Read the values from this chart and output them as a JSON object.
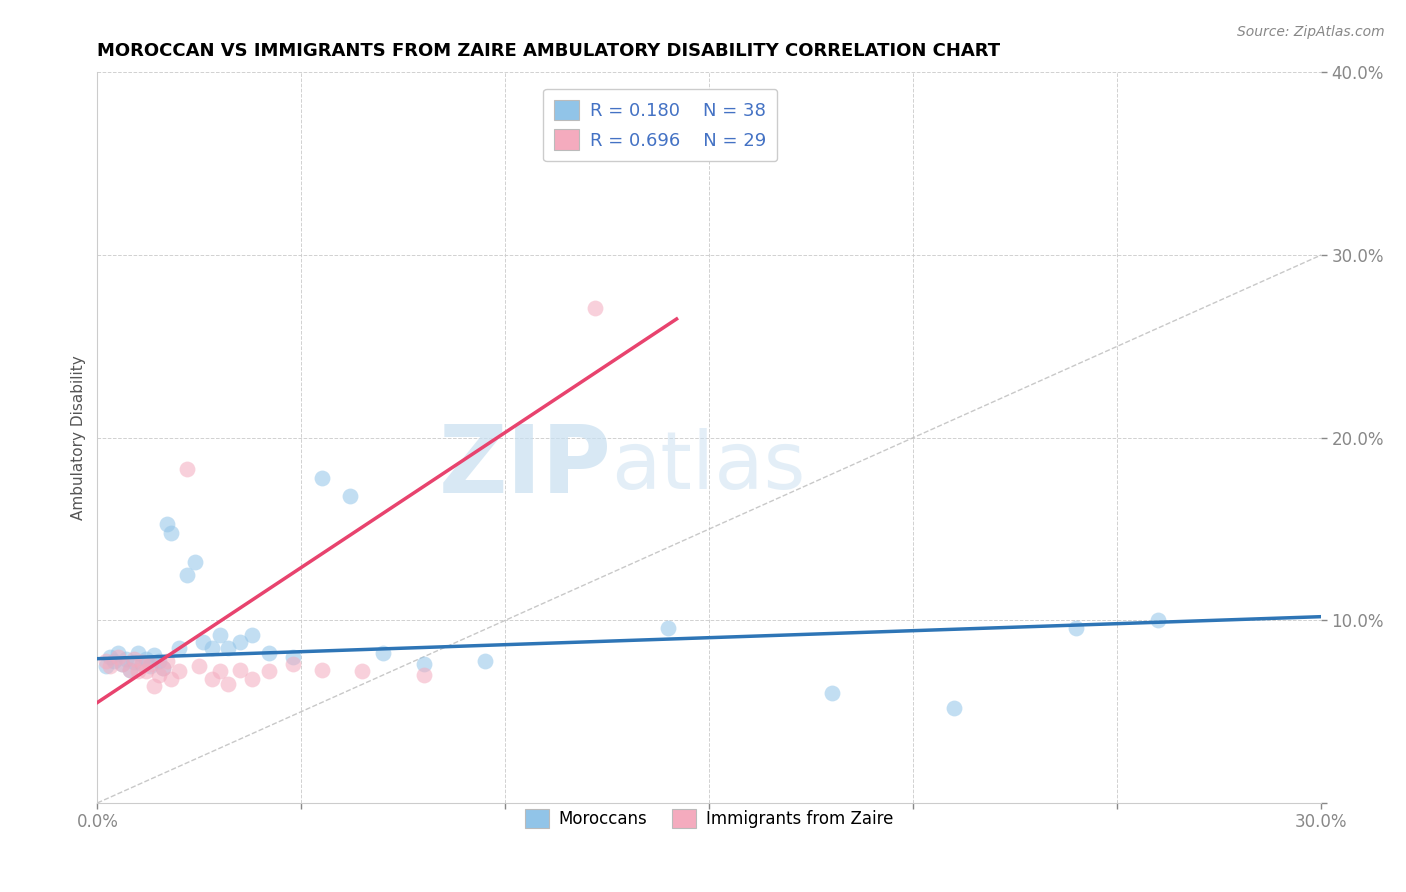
{
  "title": "MOROCCAN VS IMMIGRANTS FROM ZAIRE AMBULATORY DISABILITY CORRELATION CHART",
  "source": "Source: ZipAtlas.com",
  "ylabel": "Ambulatory Disability",
  "xlim": [
    0.0,
    0.3
  ],
  "ylim": [
    0.0,
    0.4
  ],
  "xticks": [
    0.0,
    0.05,
    0.1,
    0.15,
    0.2,
    0.25,
    0.3
  ],
  "yticks": [
    0.0,
    0.1,
    0.2,
    0.3,
    0.4
  ],
  "xticklabels": [
    "0.0%",
    "",
    "",
    "",
    "",
    "",
    "30.0%"
  ],
  "yticklabels": [
    "",
    "10.0%",
    "20.0%",
    "30.0%",
    "40.0%"
  ],
  "title_fontsize": 13,
  "blue_color": "#91C4E8",
  "pink_color": "#F4ABBE",
  "blue_line_color": "#2E75B6",
  "pink_line_color": "#E8436E",
  "blue_R": 0.18,
  "blue_N": 38,
  "pink_R": 0.696,
  "pink_N": 29,
  "legend_label_blue": "Moroccans",
  "legend_label_pink": "Immigrants from Zaire",
  "blue_scatter_x": [
    0.002,
    0.003,
    0.004,
    0.005,
    0.006,
    0.007,
    0.008,
    0.009,
    0.01,
    0.011,
    0.012,
    0.013,
    0.014,
    0.015,
    0.016,
    0.017,
    0.018,
    0.02,
    0.022,
    0.024,
    0.026,
    0.028,
    0.03,
    0.032,
    0.035,
    0.038,
    0.042,
    0.048,
    0.055,
    0.062,
    0.07,
    0.08,
    0.095,
    0.14,
    0.18,
    0.21,
    0.24,
    0.26
  ],
  "blue_scatter_y": [
    0.075,
    0.08,
    0.078,
    0.082,
    0.076,
    0.079,
    0.073,
    0.077,
    0.082,
    0.076,
    0.079,
    0.075,
    0.081,
    0.078,
    0.074,
    0.153,
    0.148,
    0.085,
    0.125,
    0.132,
    0.088,
    0.085,
    0.092,
    0.085,
    0.088,
    0.092,
    0.082,
    0.08,
    0.178,
    0.168,
    0.082,
    0.076,
    0.078,
    0.096,
    0.06,
    0.052,
    0.096,
    0.1
  ],
  "pink_scatter_x": [
    0.002,
    0.003,
    0.005,
    0.006,
    0.008,
    0.009,
    0.01,
    0.011,
    0.012,
    0.013,
    0.014,
    0.015,
    0.016,
    0.017,
    0.018,
    0.02,
    0.022,
    0.025,
    0.028,
    0.03,
    0.032,
    0.035,
    0.038,
    0.042,
    0.048,
    0.055,
    0.065,
    0.08,
    0.122
  ],
  "pink_scatter_y": [
    0.078,
    0.075,
    0.08,
    0.076,
    0.073,
    0.079,
    0.072,
    0.077,
    0.072,
    0.076,
    0.064,
    0.07,
    0.074,
    0.078,
    0.068,
    0.072,
    0.183,
    0.075,
    0.068,
    0.072,
    0.065,
    0.073,
    0.068,
    0.072,
    0.076,
    0.073,
    0.072,
    0.07,
    0.271
  ],
  "blue_trend_x": [
    0.0,
    0.3
  ],
  "blue_trend_y": [
    0.079,
    0.102
  ],
  "pink_trend_x": [
    0.0,
    0.142
  ],
  "pink_trend_y": [
    0.055,
    0.265
  ]
}
